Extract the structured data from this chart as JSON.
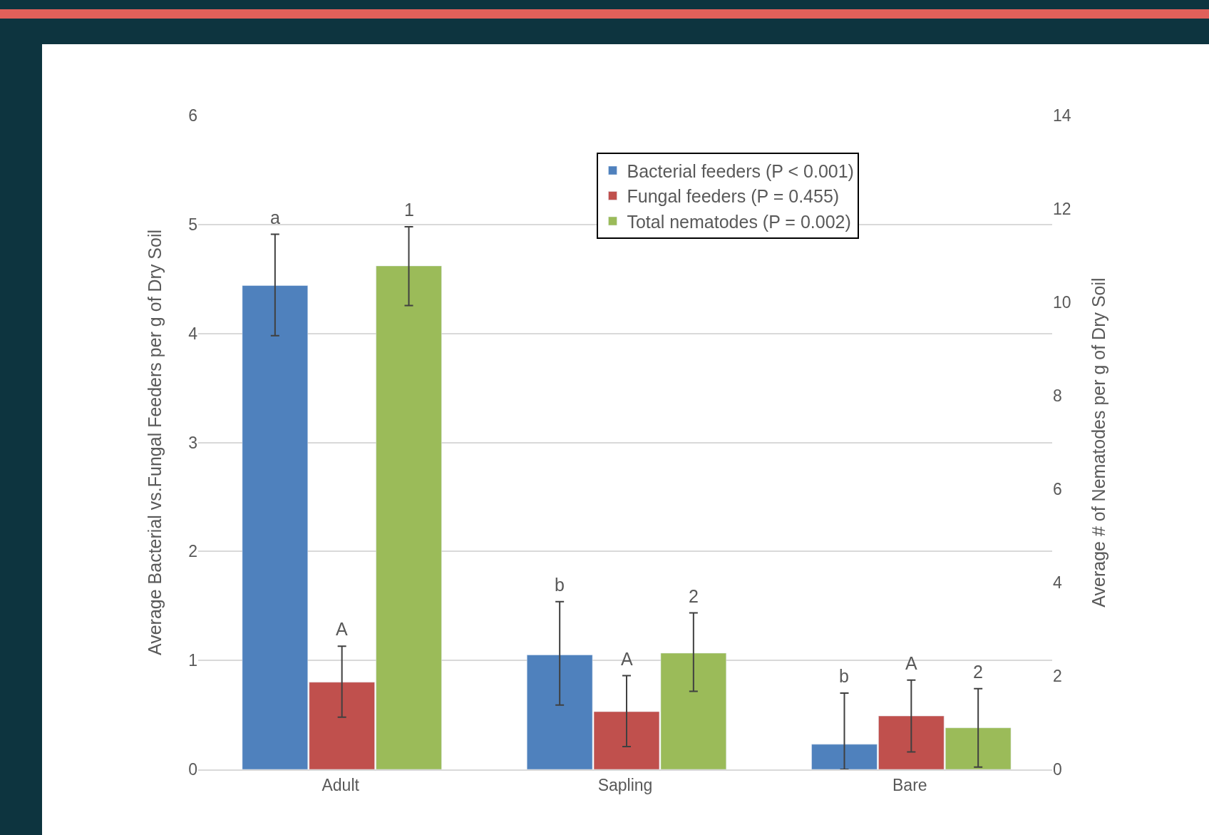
{
  "chart_data": {
    "type": "bar",
    "ylabel": "Average Bacterial vs.Fungal Feeders per g of Dry Soil",
    "y2label": "Average # of Nematodes per g of Dry Soil",
    "categories": [
      "Adult",
      "Sapling",
      "Bare"
    ],
    "series": [
      {
        "name": "Bacterial feeders (P < 0.001)",
        "color": "#4f81bd",
        "values": [
          4.44,
          1.05,
          0.23
        ],
        "errors": [
          [
            3.98,
            4.91
          ],
          [
            0.59,
            1.54
          ],
          [
            0.0,
            0.7
          ]
        ]
      },
      {
        "name": "Fungal feeders (P = 0.455)",
        "color": "#c0504d",
        "values": [
          0.8,
          0.53,
          0.49
        ],
        "errors": [
          [
            0.48,
            1.13
          ],
          [
            0.21,
            0.86
          ],
          [
            0.16,
            0.82
          ]
        ]
      },
      {
        "name": "Total nematodes (P = 0.002)",
        "color": "#9bbb59",
        "axis": "y2",
        "values": [
          10.78,
          2.49,
          0.89
        ],
        "errors": [
          [
            9.93,
            11.62
          ],
          [
            1.67,
            3.35
          ],
          [
            0.05,
            1.73
          ]
        ]
      }
    ],
    "ylim": [
      0,
      6
    ],
    "yticks": [
      0,
      1,
      2,
      3,
      4,
      5,
      6
    ],
    "y2lim": [
      0,
      14
    ],
    "y2ticks": [
      0,
      2,
      4,
      6,
      8,
      10,
      12,
      14
    ],
    "grid": "y",
    "legend": "top right",
    "annotations": [
      "a",
      "A",
      "1",
      "b",
      "A",
      "2",
      "b",
      "A",
      "2"
    ]
  }
}
